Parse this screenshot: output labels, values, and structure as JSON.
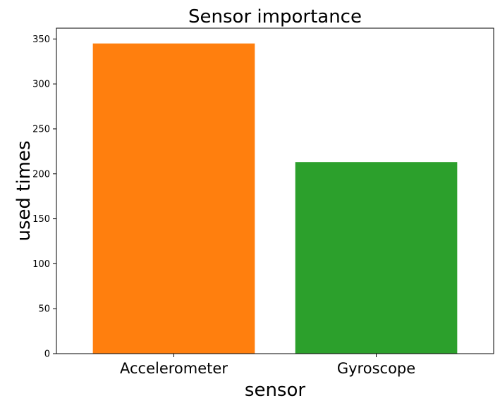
{
  "chart_data": {
    "type": "bar",
    "title": "Sensor importance",
    "xlabel": "sensor",
    "ylabel": "used times",
    "categories": [
      "Accelerometer",
      "Gyroscope"
    ],
    "values": [
      345,
      213
    ],
    "colors": [
      "#ff7f0e",
      "#2ca02c"
    ],
    "ylim": [
      0,
      362
    ],
    "yticks": [
      0,
      50,
      100,
      150,
      200,
      250,
      300,
      350
    ],
    "grid": false,
    "legend": "none"
  }
}
